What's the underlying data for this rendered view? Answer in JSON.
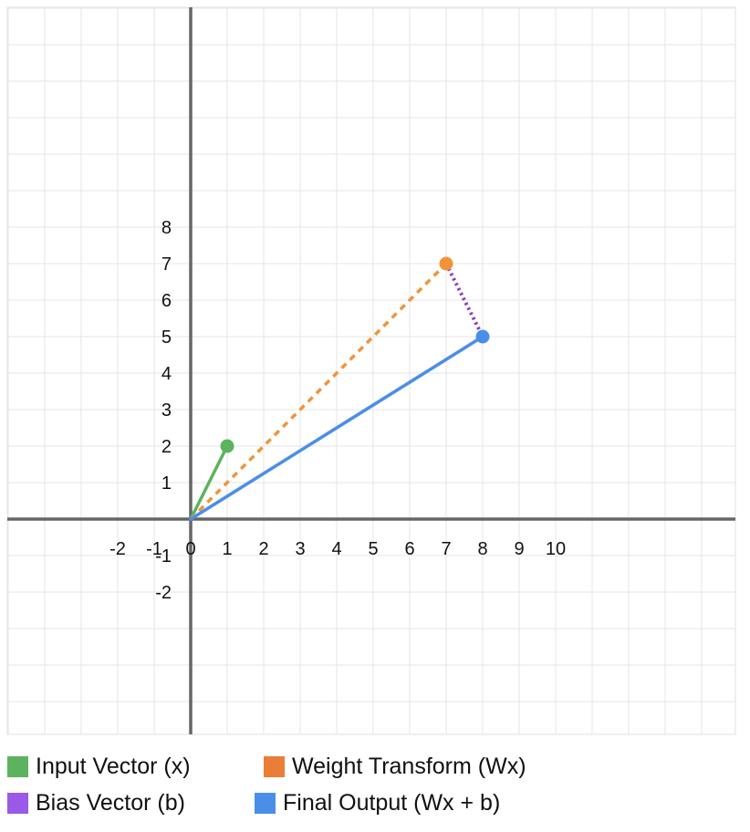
{
  "chart_data": {
    "type": "line",
    "title": "",
    "xlabel": "",
    "ylabel": "",
    "xlim": [
      -5,
      15
    ],
    "ylim": [
      -5.9,
      14
    ],
    "grid": true,
    "legend_position": "bottom",
    "x_ticks": [
      "-2",
      "-1",
      "0",
      "1",
      "2",
      "3",
      "4",
      "5",
      "6",
      "7",
      "8",
      "9",
      "10"
    ],
    "y_ticks": [
      "8",
      "7",
      "6",
      "5",
      "4",
      "3",
      "2",
      "1",
      "-1",
      "-2"
    ],
    "series": [
      {
        "name": "Input Vector (x)",
        "color": "#5db35d",
        "style": "solid",
        "points": [
          {
            "x": 0,
            "y": 0
          },
          {
            "x": 1,
            "y": 2
          }
        ],
        "end_marker": true
      },
      {
        "name": "Weight Transform (Wx)",
        "color": "#f0943a",
        "style": "dashed",
        "points": [
          {
            "x": 0,
            "y": 0
          },
          {
            "x": 7,
            "y": 7
          }
        ],
        "end_marker": true
      },
      {
        "name": "Bias Vector (b)",
        "color": "#8e3bbd",
        "style": "dotted",
        "points": [
          {
            "x": 7,
            "y": 7
          },
          {
            "x": 8,
            "y": 5
          }
        ],
        "end_marker": false
      },
      {
        "name": "Final Output (Wx + b)",
        "color": "#4a8fe7",
        "style": "solid",
        "points": [
          {
            "x": 0,
            "y": 0
          },
          {
            "x": 8,
            "y": 5
          }
        ],
        "end_marker": true
      }
    ],
    "legend": [
      {
        "label": "Input Vector (x)",
        "color": "#5db35d"
      },
      {
        "label": "Weight Transform (Wx)",
        "color": "#ea7e37"
      },
      {
        "label": "Bias Vector (b)",
        "color": "#9b59e8"
      },
      {
        "label": "Final Output (Wx + b)",
        "color": "#4a8fe7"
      }
    ]
  }
}
